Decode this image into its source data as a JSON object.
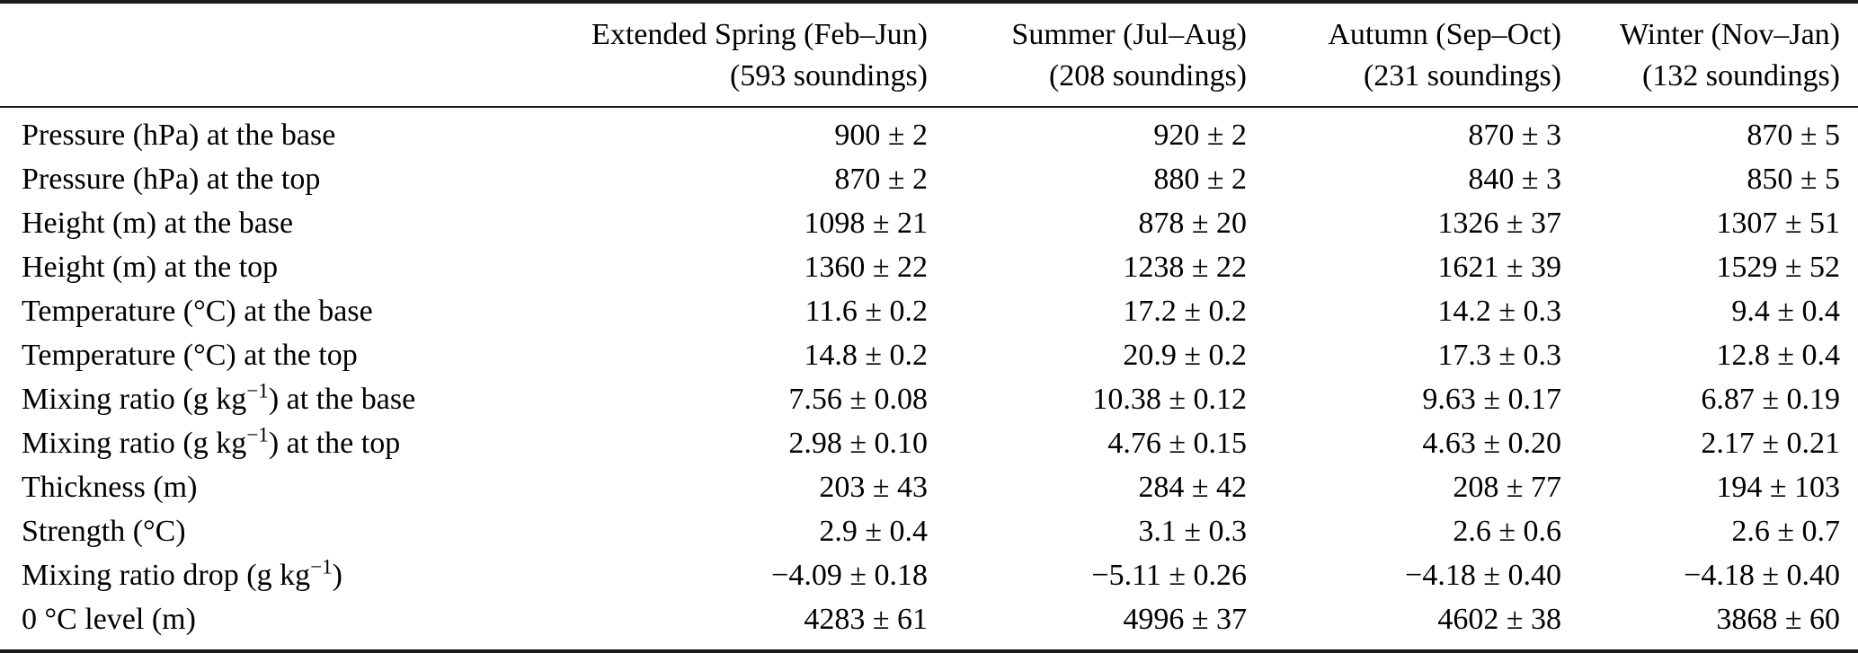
{
  "colors": {
    "background": "#ffffff",
    "text": "#000000",
    "rule": "#1a1a1a"
  },
  "table": {
    "columns": [
      {
        "season": "Extended Spring (Feb–Jun)",
        "soundings": "(593 soundings)"
      },
      {
        "season": "Summer (Jul–Aug)",
        "soundings": "(208 soundings)"
      },
      {
        "season": "Autumn (Sep–Oct)",
        "soundings": "(231 soundings)"
      },
      {
        "season": "Winter (Nov–Jan)",
        "soundings": "(132 soundings)"
      }
    ],
    "rows": [
      {
        "label_pre": "Pressure (hPa) at the base",
        "label_sup": "",
        "label_post": "",
        "values": [
          "900 ± 2",
          "920 ± 2",
          "870 ± 3",
          "870 ± 5"
        ]
      },
      {
        "label_pre": "Pressure (hPa) at the top",
        "label_sup": "",
        "label_post": "",
        "values": [
          "870 ± 2",
          "880 ± 2",
          "840 ± 3",
          "850 ± 5"
        ]
      },
      {
        "label_pre": "Height (m) at the base",
        "label_sup": "",
        "label_post": "",
        "values": [
          "1098 ± 21",
          "878 ± 20",
          "1326 ± 37",
          "1307 ± 51"
        ]
      },
      {
        "label_pre": "Height (m) at the top",
        "label_sup": "",
        "label_post": "",
        "values": [
          "1360 ± 22",
          "1238 ± 22",
          "1621 ± 39",
          "1529 ± 52"
        ]
      },
      {
        "label_pre": "Temperature (°C) at the base",
        "label_sup": "",
        "label_post": "",
        "values": [
          "11.6 ± 0.2",
          "17.2 ± 0.2",
          "14.2 ± 0.3",
          "9.4 ± 0.4"
        ]
      },
      {
        "label_pre": "Temperature (°C) at the top",
        "label_sup": "",
        "label_post": "",
        "values": [
          "14.8 ± 0.2",
          "20.9 ± 0.2",
          "17.3 ± 0.3",
          "12.8 ± 0.4"
        ]
      },
      {
        "label_pre": "Mixing ratio (g kg",
        "label_sup": "−1",
        "label_post": ") at the base",
        "values": [
          "7.56 ± 0.08",
          "10.38 ± 0.12",
          "9.63 ± 0.17",
          "6.87 ± 0.19"
        ]
      },
      {
        "label_pre": "Mixing ratio (g kg",
        "label_sup": "−1",
        "label_post": ") at the top",
        "values": [
          "2.98 ± 0.10",
          "4.76 ± 0.15",
          "4.63 ± 0.20",
          "2.17 ± 0.21"
        ]
      },
      {
        "label_pre": "Thickness (m)",
        "label_sup": "",
        "label_post": "",
        "values": [
          "203 ± 43",
          "284 ± 42",
          "208 ± 77",
          "194 ± 103"
        ]
      },
      {
        "label_pre": "Strength (°C)",
        "label_sup": "",
        "label_post": "",
        "values": [
          "2.9 ± 0.4",
          "3.1 ± 0.3",
          "2.6 ± 0.6",
          "2.6 ± 0.7"
        ]
      },
      {
        "label_pre": "Mixing ratio drop (g kg",
        "label_sup": "−1",
        "label_post": ")",
        "values": [
          "−4.09 ± 0.18",
          "−5.11 ± 0.26",
          "−4.18 ± 0.40",
          "−4.18 ± 0.40"
        ]
      },
      {
        "label_pre": "0 °C level (m)",
        "label_sup": "",
        "label_post": "",
        "values": [
          "4283 ± 61",
          "4996 ± 37",
          "4602 ± 38",
          "3868 ± 60"
        ]
      }
    ]
  }
}
